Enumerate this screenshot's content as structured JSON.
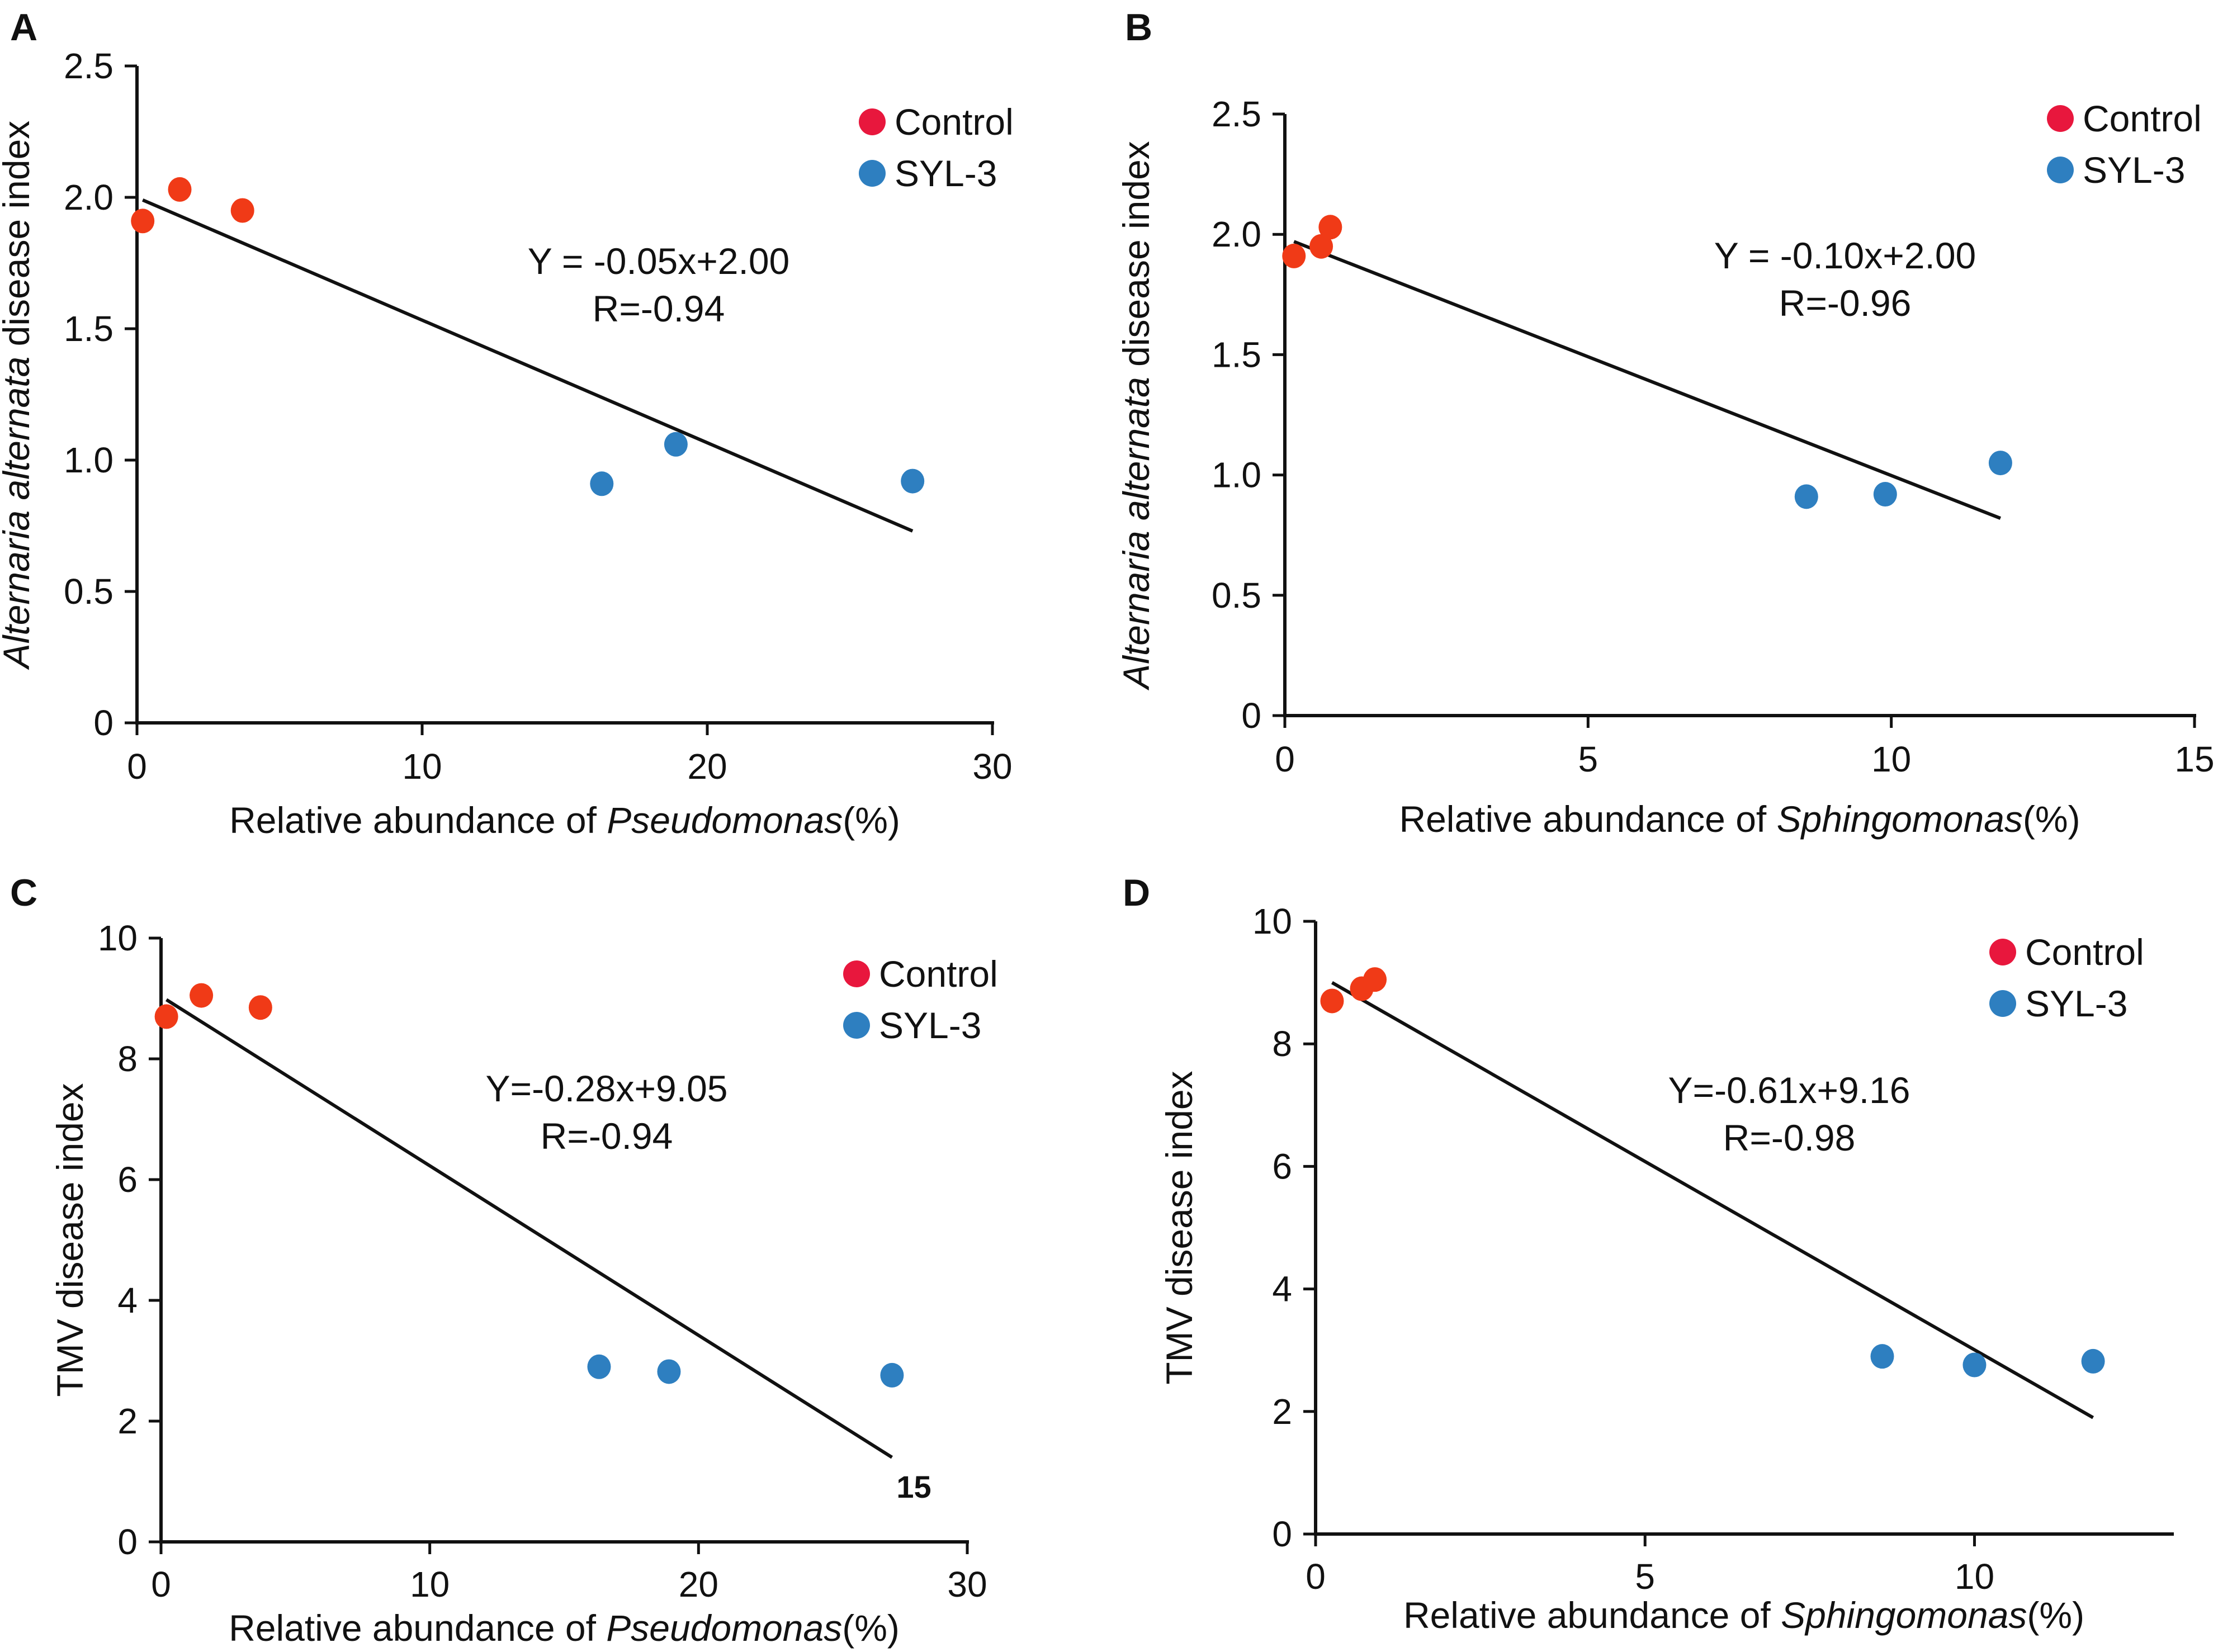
{
  "chart_data": [
    {
      "type": "scatter",
      "panel_label": "A",
      "ylabel_italic": "Alternaria alternata",
      "ylabel_rest": " disease index",
      "xlabel_prefix": "Relative abundance of ",
      "xlabel_italic": "Pseudomonas",
      "xlabel_suffix": "(%)",
      "xlim": [
        0,
        30
      ],
      "ylim": [
        0,
        2.5
      ],
      "xticks": [
        0,
        10,
        20,
        30
      ],
      "xtick_labels": [
        "0",
        "10",
        "20",
        "30"
      ],
      "yticks": [
        0,
        0.5,
        1.0,
        1.5,
        2.0,
        2.5
      ],
      "ytick_labels": [
        "0",
        "0.5",
        "1.0",
        "1.5",
        "2.0",
        "2.5"
      ],
      "series": [
        {
          "name": "Control",
          "color": "#f03a17",
          "x": [
            0.2,
            1.5,
            3.7
          ],
          "y": [
            1.91,
            2.03,
            1.95
          ]
        },
        {
          "name": "SYL-3",
          "color": "#2e7fc0",
          "x": [
            16.3,
            18.9,
            27.2
          ],
          "y": [
            0.91,
            1.06,
            0.92
          ]
        }
      ],
      "fit": {
        "x": [
          0.2,
          27.2
        ],
        "y": [
          1.99,
          0.73
        ]
      },
      "equation": "Y = -0.05x+2.00",
      "r_text": "R=-0.94",
      "legend": [
        {
          "label": "Control",
          "color": "#e8173d"
        },
        {
          "label": "SYL-3",
          "color": "#2e7fc0"
        }
      ],
      "endpoint_label": ""
    },
    {
      "type": "scatter",
      "panel_label": "B",
      "ylabel_italic": "Alternaria alternata",
      "ylabel_rest": " disease index",
      "xlabel_prefix": "Relative abundance of ",
      "xlabel_italic": "Sphingomonas",
      "xlabel_suffix": "(%)",
      "xlim": [
        0,
        15
      ],
      "ylim": [
        0,
        2.5
      ],
      "xticks": [
        0,
        5,
        10,
        15
      ],
      "xtick_labels": [
        "0",
        "5",
        "10",
        "15"
      ],
      "yticks": [
        0,
        0.5,
        1.0,
        1.5,
        2.0,
        2.5
      ],
      "ytick_labels": [
        "0",
        "0.5",
        "1.0",
        "1.5",
        "2.0",
        "2.5"
      ],
      "series": [
        {
          "name": "Control",
          "color": "#f03a17",
          "x": [
            0.15,
            0.6,
            0.75
          ],
          "y": [
            1.91,
            1.95,
            2.03
          ]
        },
        {
          "name": "SYL-3",
          "color": "#2e7fc0",
          "x": [
            8.6,
            9.9,
            11.8
          ],
          "y": [
            0.91,
            0.92,
            1.05
          ]
        }
      ],
      "fit": {
        "x": [
          0.15,
          11.8
        ],
        "y": [
          1.97,
          0.82
        ]
      },
      "equation": "Y = -0.10x+2.00",
      "r_text": "R=-0.96",
      "legend": [
        {
          "label": "Control",
          "color": "#e8173d"
        },
        {
          "label": "SYL-3",
          "color": "#2e7fc0"
        }
      ],
      "endpoint_label": ""
    },
    {
      "type": "scatter",
      "panel_label": "C",
      "ylabel_italic": "",
      "ylabel_rest": "TMV disease index",
      "xlabel_prefix": "Relative abundance of ",
      "xlabel_italic": "Pseudomonas",
      "xlabel_suffix": "(%)",
      "xlim": [
        0,
        30
      ],
      "ylim": [
        0,
        10
      ],
      "xticks": [
        0,
        10,
        20,
        30
      ],
      "xtick_labels": [
        "0",
        "10",
        "20",
        "30"
      ],
      "yticks": [
        0,
        2,
        4,
        6,
        8,
        10
      ],
      "ytick_labels": [
        "0",
        "2",
        "4",
        "6",
        "8",
        "10"
      ],
      "series": [
        {
          "name": "Control",
          "color": "#f03a17",
          "x": [
            0.2,
            1.5,
            3.7
          ],
          "y": [
            8.7,
            9.05,
            8.85
          ]
        },
        {
          "name": "SYL-3",
          "color": "#2e7fc0",
          "x": [
            16.3,
            18.9,
            27.2
          ],
          "y": [
            2.9,
            2.82,
            2.76
          ]
        }
      ],
      "fit": {
        "x": [
          0.2,
          27.2
        ],
        "y": [
          8.98,
          1.4
        ]
      },
      "equation": "Y=-0.28x+9.05",
      "r_text": "R=-0.94",
      "legend": [
        {
          "label": "Control",
          "color": "#e8173d"
        },
        {
          "label": "SYL-3",
          "color": "#2e7fc0"
        }
      ],
      "endpoint_label": "15"
    },
    {
      "type": "scatter",
      "panel_label": "D",
      "ylabel_italic": "",
      "ylabel_rest": "TMV disease index",
      "xlabel_prefix": "Relative abundance of ",
      "xlabel_italic": "Sphingomonas",
      "xlabel_suffix": "(%)",
      "xlim": [
        0,
        13
      ],
      "ylim": [
        0,
        10
      ],
      "xticks": [
        0,
        5,
        10
      ],
      "xtick_labels": [
        "0",
        "5",
        "10"
      ],
      "yticks": [
        0,
        2,
        4,
        6,
        8,
        10
      ],
      "ytick_labels": [
        "0",
        "2",
        "4",
        "6",
        "8",
        "10"
      ],
      "series": [
        {
          "name": "Control",
          "color": "#f03a17",
          "x": [
            0.25,
            0.7,
            0.9
          ],
          "y": [
            8.7,
            8.9,
            9.05
          ]
        },
        {
          "name": "SYL-3",
          "color": "#2e7fc0",
          "x": [
            8.6,
            10.0,
            11.8
          ],
          "y": [
            2.9,
            2.76,
            2.82
          ]
        }
      ],
      "fit": {
        "x": [
          0.25,
          11.8
        ],
        "y": [
          9.0,
          1.9
        ]
      },
      "equation": "Y=-0.61x+9.16",
      "r_text": "R=-0.98",
      "legend": [
        {
          "label": "Control",
          "color": "#e8173d"
        },
        {
          "label": "SYL-3",
          "color": "#2e7fc0"
        }
      ],
      "endpoint_label": ""
    }
  ]
}
